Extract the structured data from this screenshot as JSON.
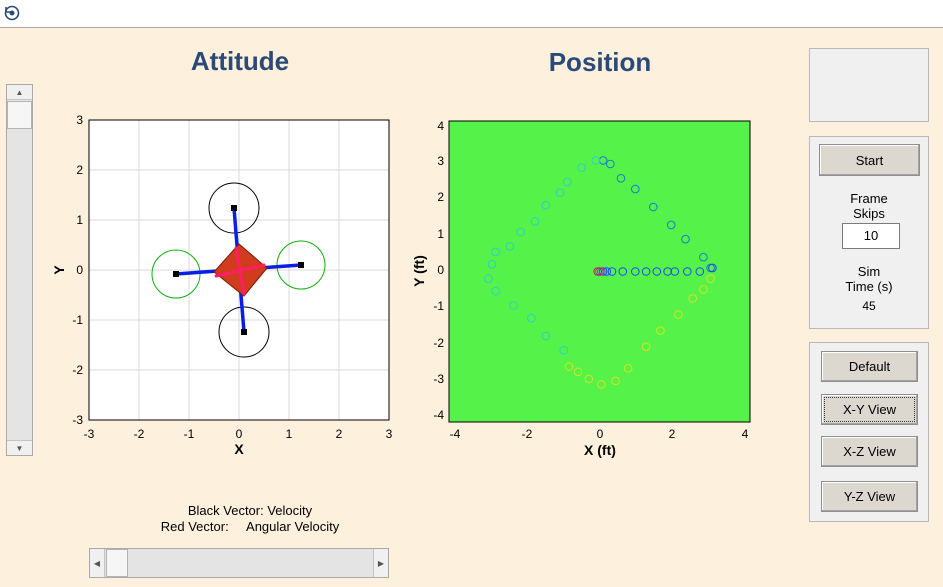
{
  "titles": {
    "attitude": "Attitude",
    "position": "Position"
  },
  "toolbar": {
    "icon": "rotate-icon"
  },
  "attitude_plot": {
    "xlabel": "X",
    "ylabel": "Y",
    "xlim": [
      -3,
      3
    ],
    "ylim": [
      -3,
      3
    ],
    "xticks": [
      "-3",
      "-2",
      "-1",
      "0",
      "1",
      "2",
      "3"
    ],
    "yticks": [
      "3",
      "2",
      "1",
      "0",
      "-1",
      "-2",
      "-3"
    ],
    "grid": true,
    "colors": {
      "arms": "#0a1ee6",
      "body": "#d23c1e",
      "vector": "#ff1e64",
      "front_rotor": "#000000",
      "side_rotor": "#10b010"
    }
  },
  "position_plot": {
    "xlabel": "X (ft)",
    "ylabel": "Y (ft)",
    "xlim": [
      -4.2,
      4.2
    ],
    "ylim": [
      -4.2,
      4.2
    ],
    "xticks": [
      "-4",
      "-2",
      "0",
      "2",
      "4"
    ],
    "yticks": [
      "4",
      "3",
      "2",
      "1",
      "0",
      "-1",
      "-2",
      "-3",
      "-4"
    ],
    "background": "#55f24a"
  },
  "legend": {
    "line1": "Black Vector: Velocity",
    "line2": "Red Vector:     Angular Velocity"
  },
  "controls": {
    "start": "Start",
    "frame_skips_label_1": "Frame",
    "frame_skips_label_2": "Skips",
    "frame_skips_value": "10",
    "sim_time_label_1": "Sim",
    "sim_time_label_2": "Time (s)",
    "sim_time_value": "45"
  },
  "views": {
    "default": "Default",
    "xy": "X-Y View",
    "xz": "X-Z View",
    "yz": "Y-Z View"
  },
  "chart_data": {
    "type": "scatter",
    "xlabel": "X (ft)",
    "ylabel": "Y (ft)",
    "xlim": [
      -4.2,
      4.2
    ],
    "ylim": [
      -4.2,
      4.2
    ],
    "series": [
      {
        "points": [
          [
            0.1,
            3.1
          ],
          [
            0.3,
            3.0
          ],
          [
            0.6,
            2.6
          ],
          [
            1.0,
            2.3
          ],
          [
            1.5,
            1.8
          ],
          [
            2.0,
            1.3
          ],
          [
            2.4,
            0.9
          ],
          [
            2.9,
            0.4
          ],
          [
            3.1,
            0.1
          ]
        ],
        "color": "#1a7ad6"
      },
      {
        "points": [
          [
            3.1,
            -0.2
          ],
          [
            2.9,
            -0.5
          ],
          [
            2.6,
            -0.75
          ],
          [
            2.2,
            -1.2
          ],
          [
            1.7,
            -1.65
          ],
          [
            1.3,
            -2.1
          ],
          [
            0.8,
            -2.7
          ],
          [
            0.45,
            -3.05
          ],
          [
            0.05,
            -3.15
          ],
          [
            -0.3,
            -3.0
          ],
          [
            -0.6,
            -2.8
          ],
          [
            -0.85,
            -2.65
          ]
        ],
        "color": "#d9e21a"
      },
      {
        "points": [
          [
            -1.0,
            -2.2
          ],
          [
            -1.5,
            -1.8
          ],
          [
            -1.9,
            -1.3
          ],
          [
            -2.4,
            -0.95
          ],
          [
            -2.9,
            -0.55
          ],
          [
            -3.1,
            -0.2
          ],
          [
            -3.0,
            0.2
          ],
          [
            -2.9,
            0.55
          ],
          [
            -2.5,
            0.7
          ],
          [
            -2.2,
            1.1
          ],
          [
            -1.8,
            1.4
          ],
          [
            -1.5,
            1.85
          ],
          [
            -1.1,
            2.2
          ],
          [
            -0.9,
            2.5
          ],
          [
            -0.5,
            2.9
          ],
          [
            -0.1,
            3.1
          ]
        ],
        "color": "#2fd0c4"
      },
      {
        "points": [
          [
            0.1,
            0
          ],
          [
            0.2,
            0
          ],
          [
            0.35,
            0
          ],
          [
            0.65,
            0
          ],
          [
            1.0,
            0
          ],
          [
            1.3,
            0
          ],
          [
            1.6,
            0
          ],
          [
            1.9,
            0
          ],
          [
            2.1,
            0
          ],
          [
            2.45,
            0
          ],
          [
            2.8,
            0
          ],
          [
            3.15,
            0.1
          ]
        ],
        "color": "#2244ff"
      },
      {
        "points": [
          [
            0.0,
            0
          ],
          [
            0.05,
            0
          ]
        ],
        "color": "#8a3bd6"
      },
      {
        "points": [
          [
            -0.05,
            0
          ]
        ],
        "color": "#d01818"
      }
    ]
  }
}
